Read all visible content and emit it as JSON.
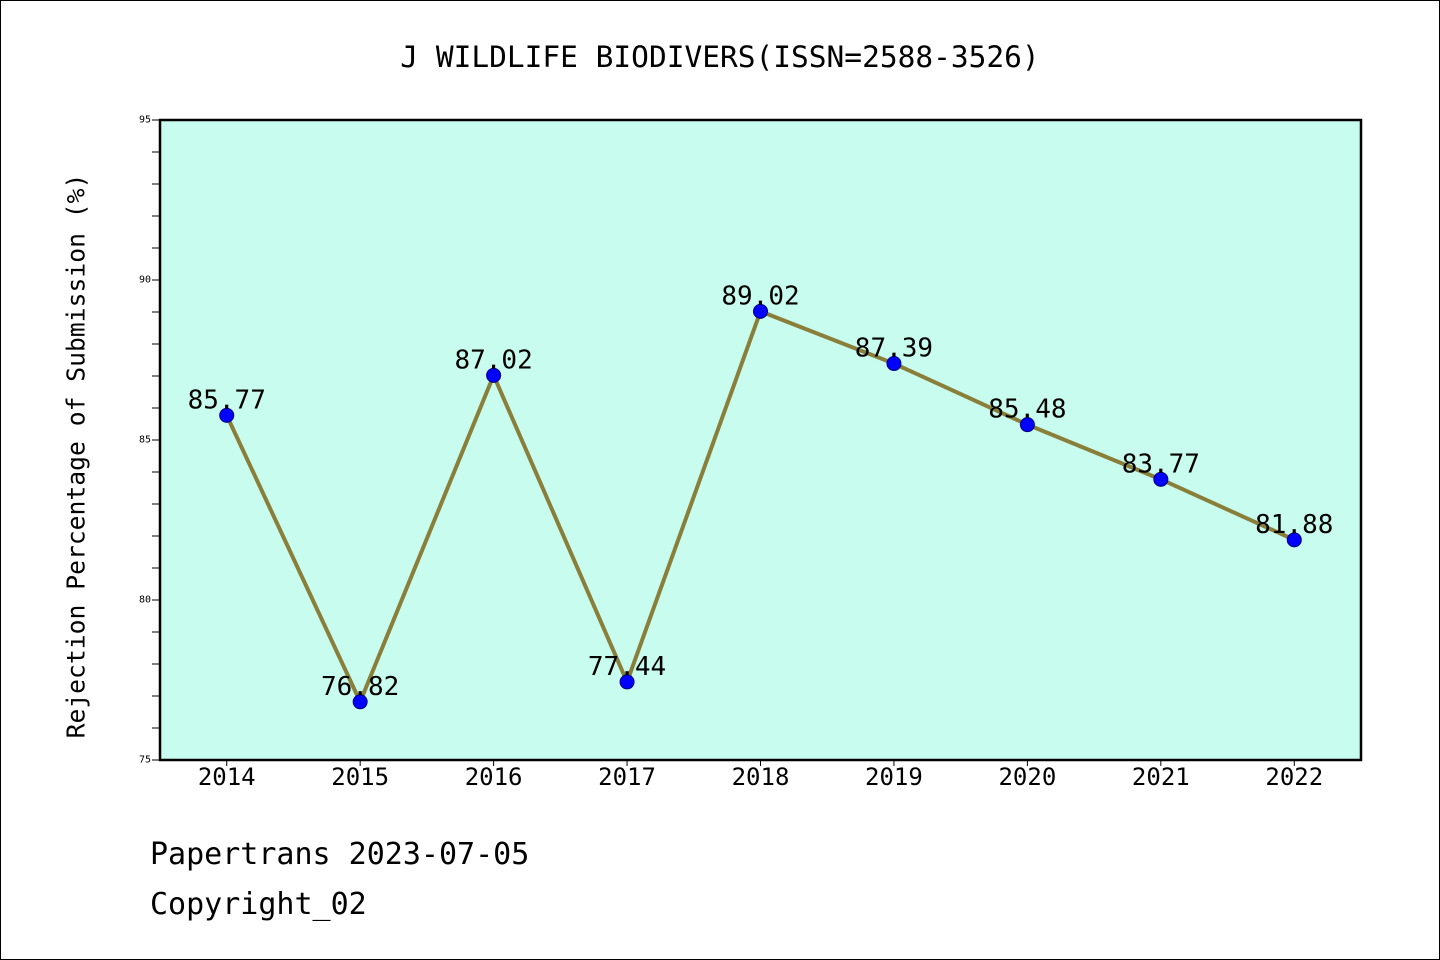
{
  "chart_data": {
    "type": "line",
    "title": "J WILDLIFE BIODIVERS(ISSN=2588-3526)",
    "xlabel": "",
    "ylabel": "Rejection Percentage of Submission (%)",
    "categories": [
      "2014",
      "2015",
      "2016",
      "2017",
      "2018",
      "2019",
      "2020",
      "2021",
      "2022"
    ],
    "series": [
      {
        "values": [
          85.77,
          76.82,
          87.02,
          77.44,
          89.02,
          87.39,
          85.48,
          83.77,
          81.88
        ]
      }
    ],
    "ylim": [
      75,
      95
    ],
    "yticks": [
      75,
      80,
      85,
      90,
      95
    ],
    "grid": false,
    "legend": false,
    "data_labels": true,
    "colors": {
      "line": "#8a7f3a",
      "marker": "#0000ff",
      "marker_edge": "#00007a",
      "plot_background": "#c8fcee"
    }
  },
  "footer": {
    "source": "Papertrans 2023-07-05",
    "copyright": "Copyright_02"
  }
}
